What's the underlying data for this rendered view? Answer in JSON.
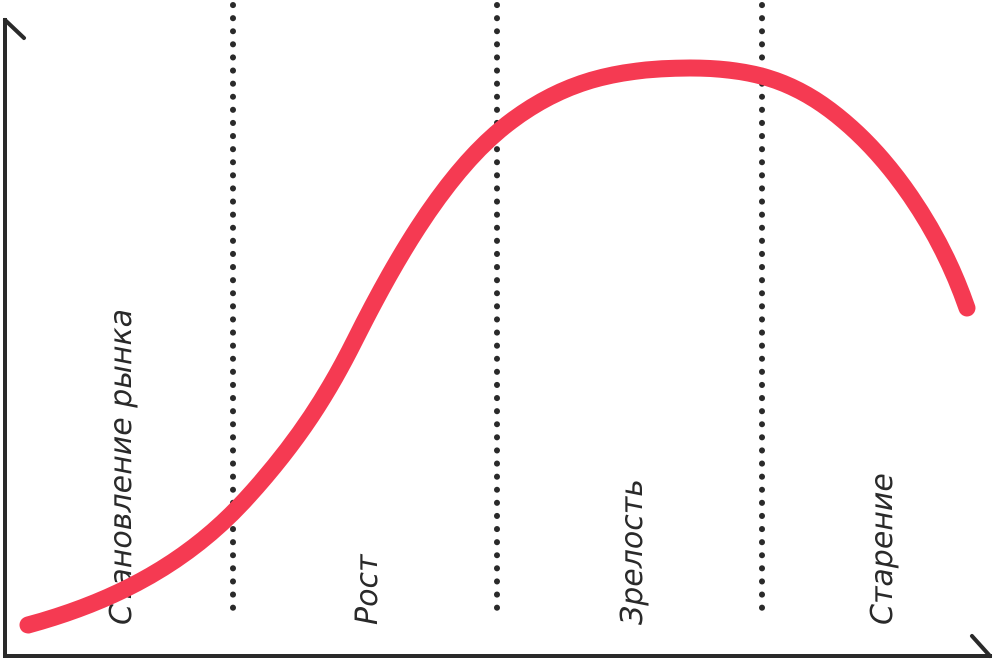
{
  "colors": {
    "curve": "#f53a52",
    "axes": "#2a2a2a",
    "dividers": "#2a2a2a",
    "background": "#ffffff"
  },
  "stages": [
    {
      "label": "Становление рынка"
    },
    {
      "label": "Рост"
    },
    {
      "label": "Зрелость"
    },
    {
      "label": "Старение"
    }
  ]
}
